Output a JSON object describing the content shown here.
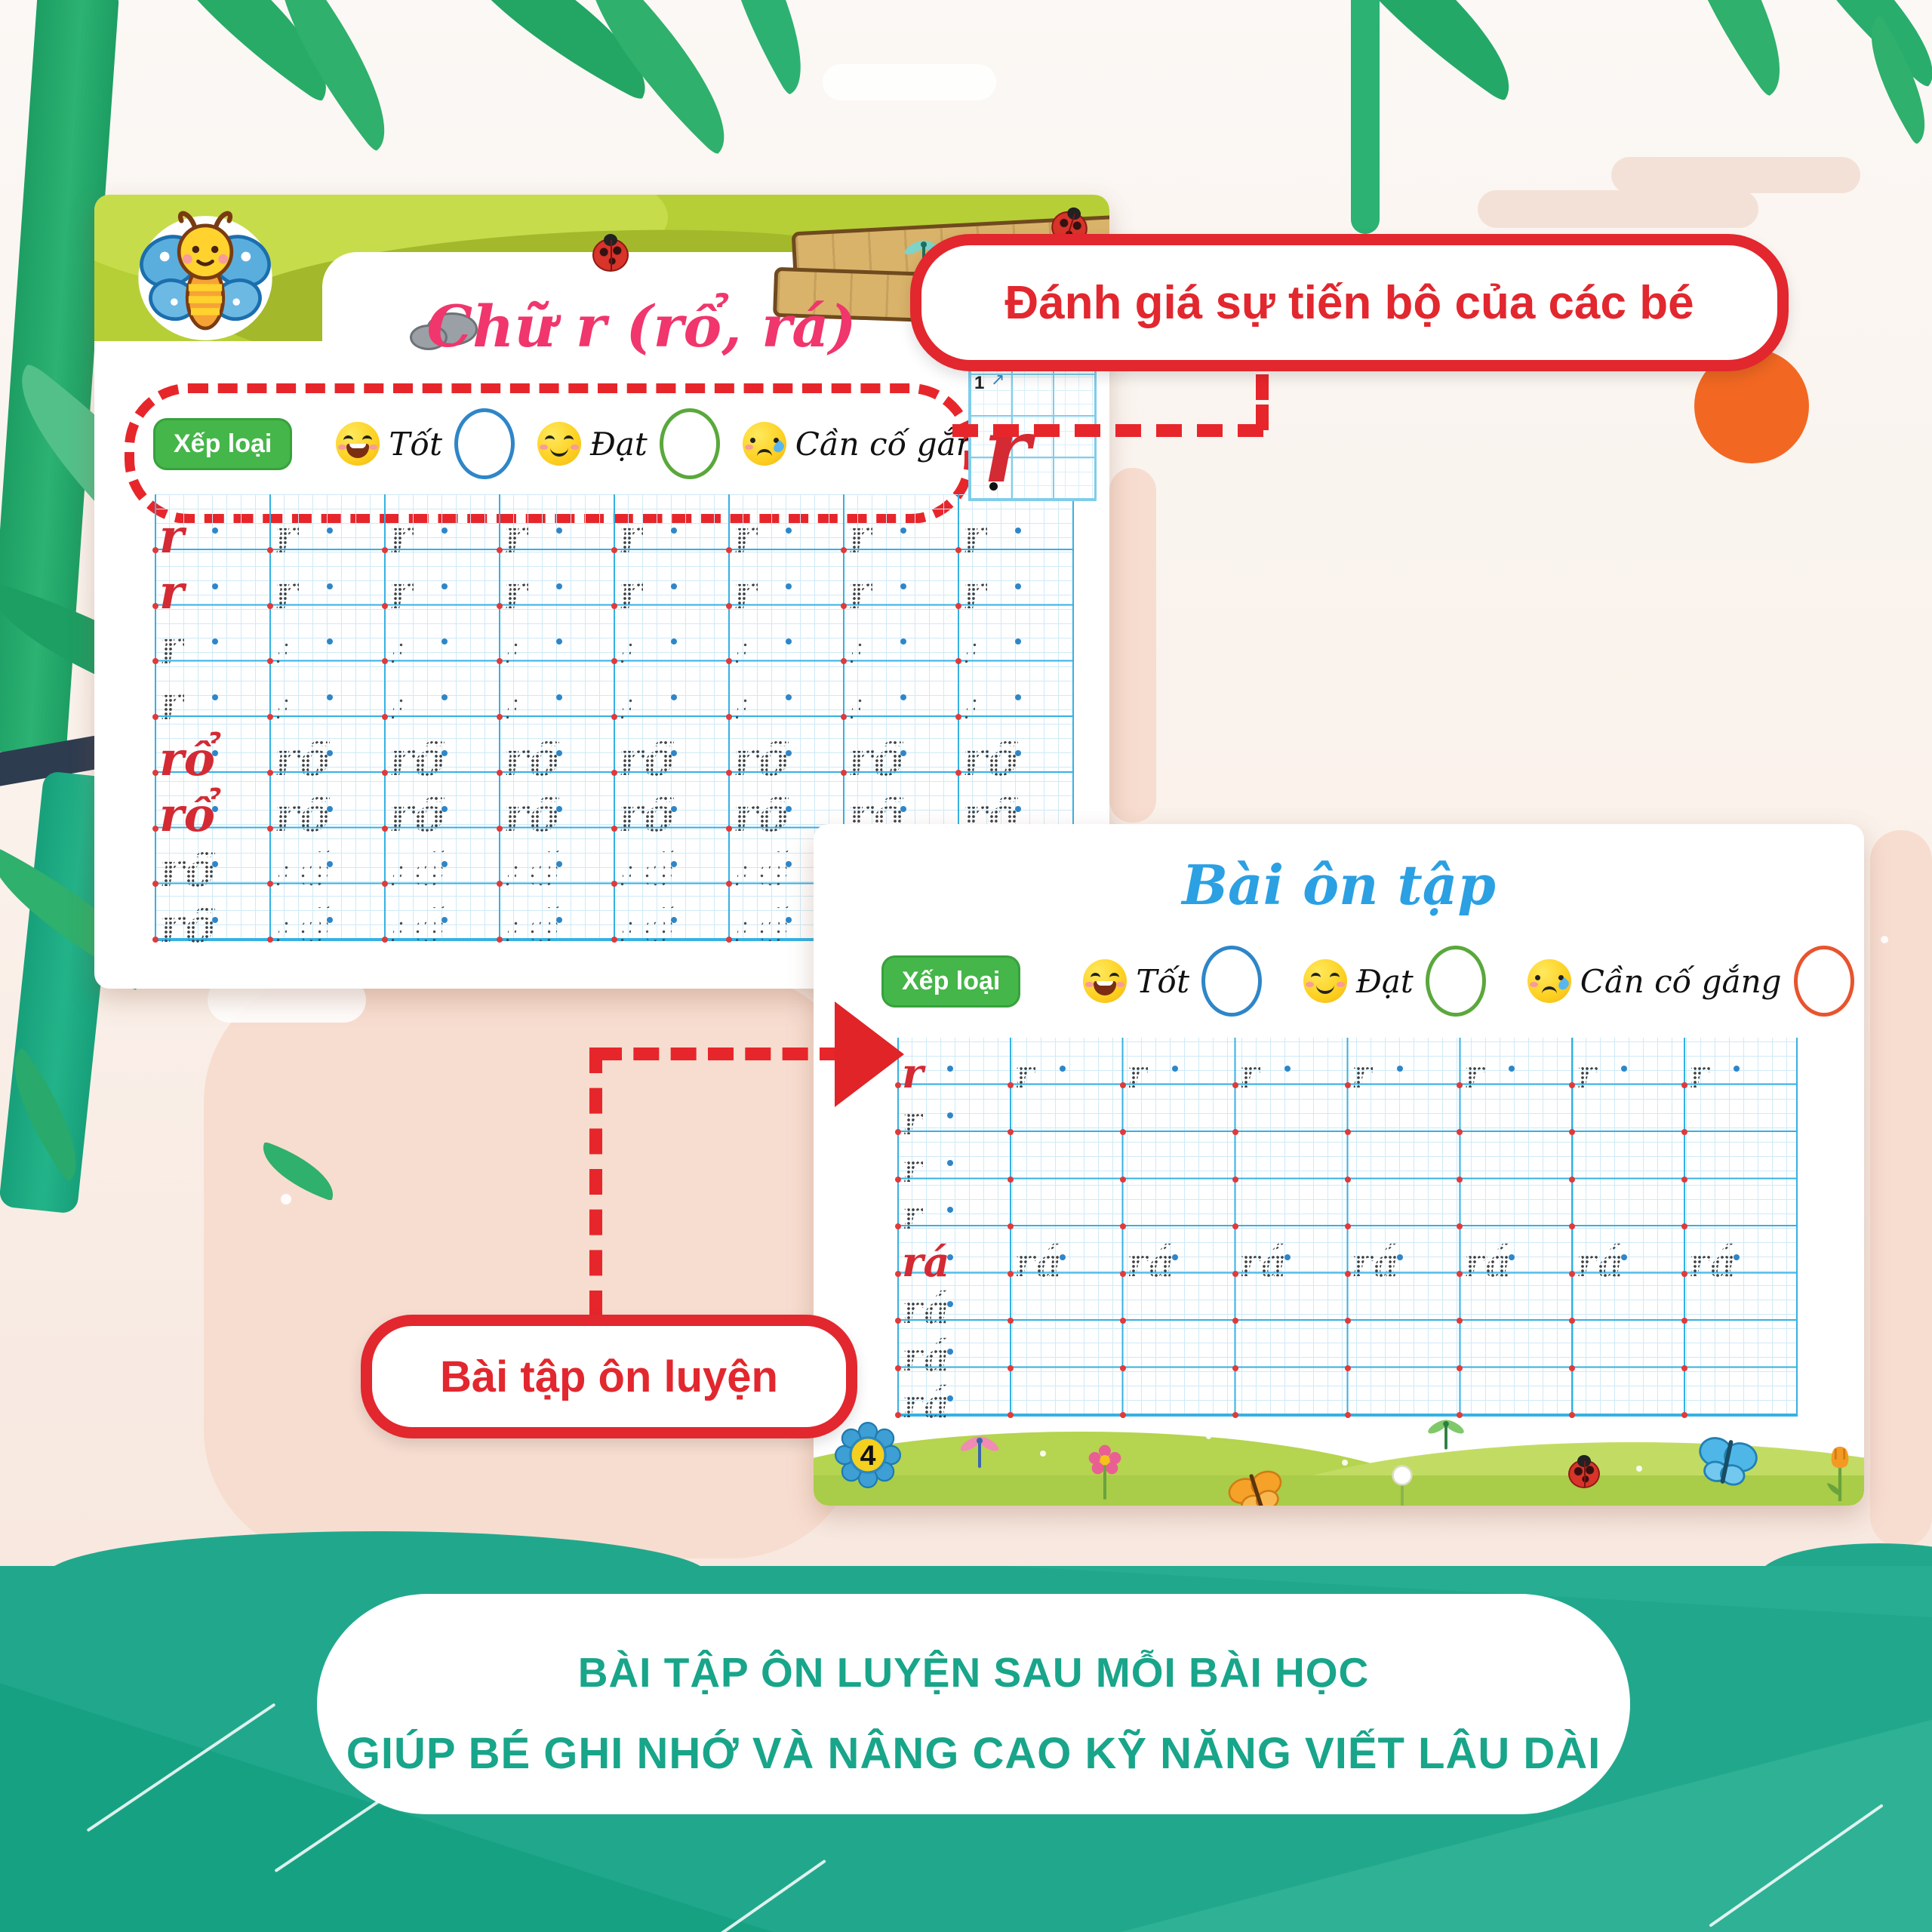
{
  "page1": {
    "title": "Chữ r (rổ, rá)",
    "rating": {
      "label": "Xếp loại",
      "options": [
        {
          "emoji": "laugh-emoji",
          "label": "Tốt",
          "circle_color": "#2e86c8"
        },
        {
          "emoji": "smile-emoji",
          "label": "Đạt",
          "circle_color": "#5aa83c"
        },
        {
          "emoji": "cry-emoji",
          "label": "Cần cố gắng",
          "circle_color": "#e8542e"
        }
      ]
    },
    "demo": {
      "letter": "r",
      "stroke_number": "1",
      "stroke_arrow": "↗"
    },
    "grid": {
      "columns": 8,
      "rows": [
        {
          "word": "r",
          "first": "solid",
          "rest": "dotted"
        },
        {
          "word": "r",
          "first": "solid",
          "rest": "dotted"
        },
        {
          "word": "r",
          "first": "dotted",
          "rest": "sparse"
        },
        {
          "word": "r",
          "first": "dotted",
          "rest": "sparse"
        },
        {
          "word": "rổ",
          "first": "solid",
          "rest": "dotted"
        },
        {
          "word": "rổ",
          "first": "solid",
          "rest": "dotted"
        },
        {
          "word": "rổ",
          "first": "dotted",
          "rest": "sparse"
        },
        {
          "word": "rổ",
          "first": "dotted",
          "rest": "sparse"
        }
      ]
    }
  },
  "page2": {
    "title": "Bài ôn tập",
    "page_number": "4",
    "rating": {
      "label": "Xếp loại",
      "options": [
        {
          "emoji": "laugh-emoji",
          "label": "Tốt",
          "circle_color": "#2e86c8"
        },
        {
          "emoji": "smile-emoji",
          "label": "Đạt",
          "circle_color": "#5aa83c"
        },
        {
          "emoji": "cry-emoji",
          "label": "Cần cố gắng",
          "circle_color": "#e8542e"
        }
      ]
    },
    "grid": {
      "columns": 8,
      "rows": [
        {
          "word": "r",
          "first": "solid",
          "rest": "dotted"
        },
        {
          "word": "r",
          "first": "dotted",
          "rest": "none"
        },
        {
          "word": "r",
          "first": "dotted",
          "rest": "none"
        },
        {
          "word": "r",
          "first": "dotted",
          "rest": "none"
        },
        {
          "word": "rá",
          "first": "solid",
          "rest": "dotted"
        },
        {
          "word": "rá",
          "first": "dotted",
          "rest": "none"
        },
        {
          "word": "rá",
          "first": "dotted",
          "rest": "none"
        },
        {
          "word": "rá",
          "first": "dotted",
          "rest": "none"
        }
      ]
    }
  },
  "callouts": {
    "evaluate": "Đánh giá sự tiến bộ của các bé",
    "practice": "Bài tập ôn luyện"
  },
  "footer": {
    "line1": "BÀI TẬP ÔN LUYỆN SAU MỖI BÀI HỌC",
    "line2": "GIÚP BÉ GHI NHỚ VÀ NÂNG CAO KỸ NĂNG VIẾT LÂU DÀI"
  },
  "colors": {
    "accent_red": "#e2272e",
    "title_pink": "#f0366c",
    "title_blue": "#2ba0e3",
    "pill_green": "#45b649",
    "grid_blue": "#35b1e4",
    "letter_red": "#d42a33",
    "teal_background": "#21a88c",
    "footer_text": "#18a58a",
    "sun_orange": "#f26822",
    "banner_green": "#b7cf36"
  }
}
